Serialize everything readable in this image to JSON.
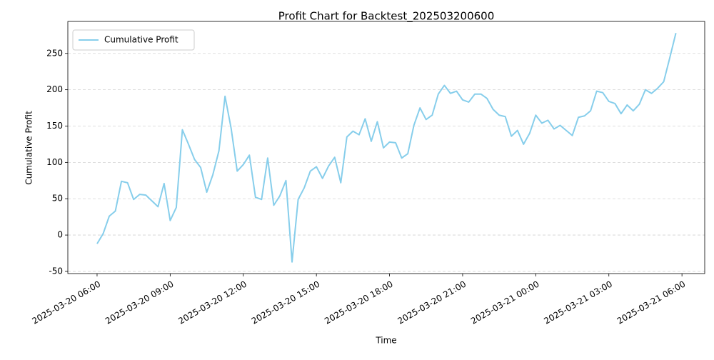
{
  "chart_data": {
    "type": "line",
    "title": "Profit Chart for Backtest_202503200600",
    "xlabel": "Time",
    "ylabel": "Cumulative Profit",
    "x": [
      "2025-03-20 06:00",
      "2025-03-20 06:15",
      "2025-03-20 06:30",
      "2025-03-20 06:45",
      "2025-03-20 07:00",
      "2025-03-20 07:15",
      "2025-03-20 07:30",
      "2025-03-20 07:45",
      "2025-03-20 08:00",
      "2025-03-20 08:15",
      "2025-03-20 08:30",
      "2025-03-20 08:45",
      "2025-03-20 09:00",
      "2025-03-20 09:15",
      "2025-03-20 09:30",
      "2025-03-20 09:45",
      "2025-03-20 10:00",
      "2025-03-20 10:15",
      "2025-03-20 10:30",
      "2025-03-20 10:45",
      "2025-03-20 11:00",
      "2025-03-20 11:15",
      "2025-03-20 11:30",
      "2025-03-20 11:45",
      "2025-03-20 12:00",
      "2025-03-20 12:15",
      "2025-03-20 12:30",
      "2025-03-20 12:45",
      "2025-03-20 13:00",
      "2025-03-20 13:15",
      "2025-03-20 13:30",
      "2025-03-20 13:45",
      "2025-03-20 14:00",
      "2025-03-20 14:15",
      "2025-03-20 14:30",
      "2025-03-20 14:45",
      "2025-03-20 15:00",
      "2025-03-20 15:15",
      "2025-03-20 15:30",
      "2025-03-20 15:45",
      "2025-03-20 16:00",
      "2025-03-20 16:15",
      "2025-03-20 16:30",
      "2025-03-20 16:45",
      "2025-03-20 17:00",
      "2025-03-20 17:15",
      "2025-03-20 17:30",
      "2025-03-20 17:45",
      "2025-03-20 18:00",
      "2025-03-20 18:15",
      "2025-03-20 18:30",
      "2025-03-20 18:45",
      "2025-03-20 19:00",
      "2025-03-20 19:15",
      "2025-03-20 19:30",
      "2025-03-20 19:45",
      "2025-03-20 20:00",
      "2025-03-20 20:15",
      "2025-03-20 20:30",
      "2025-03-20 20:45",
      "2025-03-20 21:00",
      "2025-03-20 21:15",
      "2025-03-20 21:30",
      "2025-03-20 21:45",
      "2025-03-20 22:00",
      "2025-03-20 22:15",
      "2025-03-20 22:30",
      "2025-03-20 22:45",
      "2025-03-20 23:00",
      "2025-03-20 23:15",
      "2025-03-20 23:30",
      "2025-03-20 23:45",
      "2025-03-21 00:00",
      "2025-03-21 00:15",
      "2025-03-21 00:30",
      "2025-03-21 00:45",
      "2025-03-21 01:00",
      "2025-03-21 01:15",
      "2025-03-21 01:30",
      "2025-03-21 01:45",
      "2025-03-21 02:00",
      "2025-03-21 02:15",
      "2025-03-21 02:30",
      "2025-03-21 02:45",
      "2025-03-21 03:00",
      "2025-03-21 03:15",
      "2025-03-21 03:30",
      "2025-03-21 03:45",
      "2025-03-21 04:00",
      "2025-03-21 04:15",
      "2025-03-21 04:30",
      "2025-03-21 04:45",
      "2025-03-21 05:00",
      "2025-03-21 05:15",
      "2025-03-21 05:30",
      "2025-03-21 05:45"
    ],
    "series": [
      {
        "name": "Cumulative Profit",
        "color": "#87ceeb",
        "values": [
          -12,
          2,
          26,
          33,
          74,
          72,
          49,
          56,
          55,
          47,
          39,
          71,
          20,
          38,
          145,
          125,
          104,
          93,
          59,
          83,
          116,
          191,
          147,
          88,
          97,
          110,
          52,
          49,
          106,
          41,
          54,
          75,
          -37,
          49,
          65,
          88,
          94,
          78,
          95,
          107,
          72,
          135,
          143,
          138,
          160,
          129,
          156,
          120,
          128,
          127,
          106,
          112,
          151,
          175,
          159,
          165,
          194,
          206,
          195,
          198,
          186,
          183,
          194,
          194,
          188,
          173,
          165,
          163,
          136,
          144,
          125,
          140,
          165,
          154,
          158,
          146,
          151,
          144,
          137,
          162,
          164,
          171,
          198,
          196,
          184,
          181,
          167,
          179,
          171,
          180,
          200,
          195,
          202,
          211,
          244,
          278
        ]
      }
    ],
    "xlim": [
      "2025-03-20 04:48",
      "2025-03-21 06:56"
    ],
    "xticks": [
      "2025-03-20 06:00",
      "2025-03-20 09:00",
      "2025-03-20 12:00",
      "2025-03-20 15:00",
      "2025-03-20 18:00",
      "2025-03-20 21:00",
      "2025-03-21 00:00",
      "2025-03-21 03:00",
      "2025-03-21 06:00"
    ],
    "ylim": [
      -53,
      294
    ],
    "yticks": [
      -50,
      0,
      50,
      100,
      150,
      200,
      250
    ],
    "grid": true,
    "legend": "upper left"
  }
}
